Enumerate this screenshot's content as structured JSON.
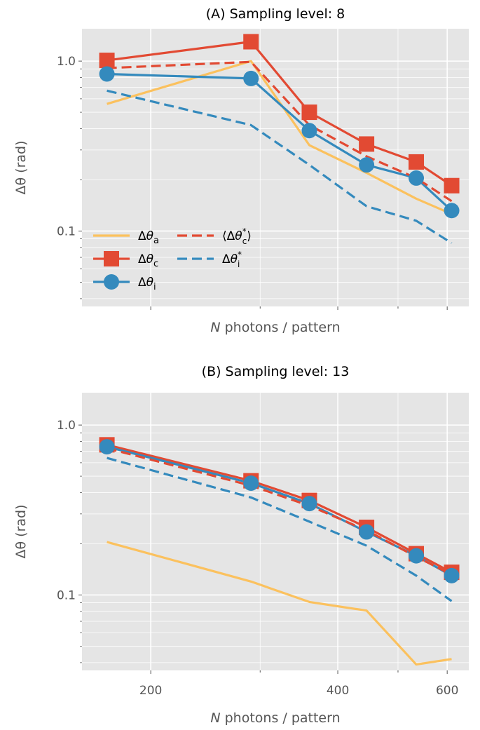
{
  "chart_data": [
    {
      "type": "line",
      "title": "(A) Sampling level: 8",
      "xlabel_var": "N",
      "xlabel": " photons / pattern",
      "ylabel": "Δθ (rad)",
      "xscale": "log",
      "yscale": "log",
      "xlim": [
        155,
        650
      ],
      "ylim": [
        0.036,
        1.55
      ],
      "yticks": [
        {
          "value": 0.1,
          "label": "0.1"
        },
        {
          "value": 1,
          "label": "1.0"
        }
      ],
      "xticks": [],
      "grid": true,
      "legend_position": "lower-left",
      "legend": [
        {
          "sym": "Δθ",
          "sub": "a",
          "sup": "",
          "bracket": false,
          "color": "#fbc15e",
          "dash": false,
          "marker": "none"
        },
        {
          "sym": "Δθ",
          "sub": "c",
          "sup": "",
          "bracket": false,
          "color": "#e24a33",
          "dash": false,
          "marker": "square"
        },
        {
          "sym": "Δθ",
          "sub": "i",
          "sup": "",
          "bracket": false,
          "color": "#348abd",
          "dash": false,
          "marker": "circle"
        },
        {
          "sym": "Δθ",
          "sub": "c",
          "sup": "*",
          "bracket": true,
          "color": "#e24a33",
          "dash": true,
          "marker": "none"
        },
        {
          "sym": "Δθ",
          "sub": "i",
          "sup": "*",
          "bracket": false,
          "color": "#348abd",
          "dash": true,
          "marker": "none"
        }
      ],
      "series": [
        {
          "name": "Δθa",
          "color": "#fbc15e",
          "dash": false,
          "marker": "none",
          "x": [
            170,
            290,
            360,
            445,
            535,
            610
          ],
          "y": [
            0.56,
            1.0,
            0.32,
            0.22,
            0.155,
            0.126
          ]
        },
        {
          "name": "Δθc",
          "color": "#e24a33",
          "dash": false,
          "marker": "square",
          "x": [
            170,
            290,
            360,
            445,
            535,
            610
          ],
          "y": [
            1.01,
            1.3,
            0.5,
            0.325,
            0.255,
            0.185
          ]
        },
        {
          "name": "Δθi",
          "color": "#348abd",
          "dash": false,
          "marker": "circle",
          "x": [
            170,
            290,
            360,
            445,
            535,
            610
          ],
          "y": [
            0.84,
            0.79,
            0.39,
            0.245,
            0.205,
            0.132
          ]
        },
        {
          "name": "⟨Δθc*⟩",
          "color": "#e24a33",
          "dash": true,
          "marker": "none",
          "x": [
            170,
            290,
            360,
            445,
            535,
            610
          ],
          "y": [
            0.91,
            0.99,
            0.42,
            0.275,
            0.205,
            0.15
          ]
        },
        {
          "name": "Δθi*",
          "color": "#348abd",
          "dash": true,
          "marker": "none",
          "x": [
            170,
            290,
            360,
            445,
            535,
            610
          ],
          "y": [
            0.67,
            0.42,
            0.245,
            0.14,
            0.115,
            0.085
          ]
        }
      ]
    },
    {
      "type": "line",
      "title": "(B) Sampling level: 13",
      "xlabel_var": "N",
      "xlabel": " photons / pattern",
      "ylabel": "Δθ (rad)",
      "xscale": "log",
      "yscale": "log",
      "xlim": [
        155,
        650
      ],
      "ylim": [
        0.036,
        1.55
      ],
      "yticks": [
        {
          "value": 0.1,
          "label": "0.1"
        },
        {
          "value": 1,
          "label": "1.0"
        }
      ],
      "xticks": [
        {
          "value": 200,
          "label": "200"
        },
        {
          "value": 400,
          "label": "400"
        },
        {
          "value": 600,
          "label": "600"
        }
      ],
      "grid": true,
      "legend": [],
      "series": [
        {
          "name": "Δθa",
          "color": "#fbc15e",
          "dash": false,
          "marker": "none",
          "x": [
            170,
            290,
            360,
            445,
            535,
            610
          ],
          "y": [
            0.205,
            0.12,
            0.091,
            0.081,
            0.039,
            0.042
          ]
        },
        {
          "name": "Δθc",
          "color": "#e24a33",
          "dash": false,
          "marker": "square",
          "x": [
            170,
            290,
            360,
            445,
            535,
            610
          ],
          "y": [
            0.765,
            0.47,
            0.36,
            0.25,
            0.175,
            0.136
          ]
        },
        {
          "name": "Δθi",
          "color": "#348abd",
          "dash": false,
          "marker": "circle",
          "x": [
            170,
            290,
            360,
            445,
            535,
            610
          ],
          "y": [
            0.745,
            0.455,
            0.345,
            0.235,
            0.17,
            0.13
          ]
        },
        {
          "name": "⟨Δθc*⟩",
          "color": "#e24a33",
          "dash": true,
          "marker": "none",
          "x": [
            170,
            290,
            360,
            445,
            535,
            610
          ],
          "y": [
            0.73,
            0.44,
            0.335,
            0.24,
            0.168,
            0.132
          ]
        },
        {
          "name": "Δθi*",
          "color": "#348abd",
          "dash": true,
          "marker": "none",
          "x": [
            170,
            290,
            360,
            445,
            535,
            610
          ],
          "y": [
            0.64,
            0.375,
            0.27,
            0.195,
            0.13,
            0.092
          ]
        }
      ]
    }
  ]
}
